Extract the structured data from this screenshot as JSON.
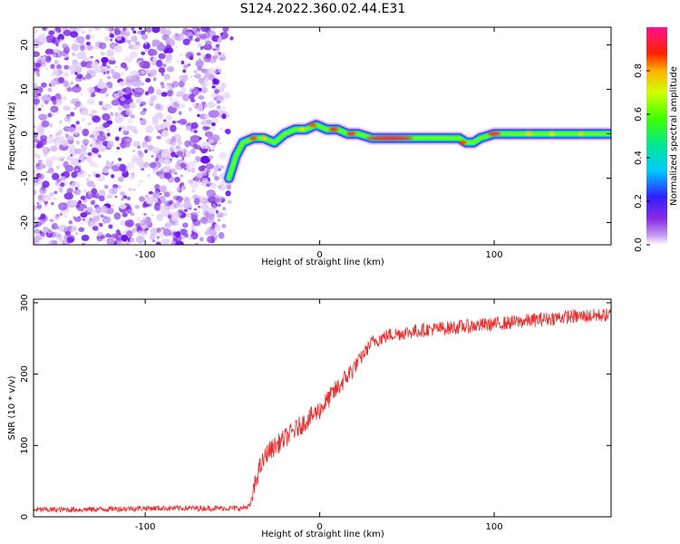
{
  "title": "S124.2022.360.02.44.E31",
  "colors": {
    "snr_line": "#e83030",
    "background": "#ffffff",
    "noise_cloud": "#8a2be2"
  },
  "chart_data": [
    {
      "type": "heatmap",
      "xlabel": "Height of straight line (km)",
      "ylabel": "Frequency (Hz)",
      "xlim": [
        -164,
        167
      ],
      "ylim": [
        -25,
        24
      ],
      "xticks": [
        -100,
        0,
        100
      ],
      "yticks": [
        -20,
        -10,
        0,
        10,
        20
      ],
      "colorbar": {
        "label": "Normalized spectral amplitude",
        "range": [
          0,
          1
        ],
        "ticks": [
          "0.0",
          "0.2",
          "0.4",
          "0.6",
          "0.8"
        ],
        "colormap": "rainbow (white-violet-blue-cyan-green-yellow-red-magenta)"
      },
      "noise_region_x": [
        -164,
        -50
      ],
      "ridge": {
        "x": [
          -52,
          -48,
          -44,
          -38,
          -32,
          -26,
          -20,
          -14,
          -8,
          -2,
          4,
          10,
          16,
          22,
          30,
          45,
          60,
          75,
          80,
          84,
          88,
          92,
          100,
          120,
          140,
          160,
          167
        ],
        "freq": [
          -10,
          -5,
          -2,
          -1,
          -1,
          -2,
          0,
          1,
          1,
          2,
          1,
          1,
          0,
          0,
          -1,
          -1,
          -1,
          -1,
          -1,
          -2,
          -2,
          -1,
          0,
          0,
          0,
          0,
          0
        ]
      }
    },
    {
      "type": "line",
      "xlabel": "Height of straight line (km)",
      "ylabel": "SNR (10 * v/v)",
      "xlim": [
        -164,
        167
      ],
      "ylim": [
        0,
        305
      ],
      "xticks": [
        -100,
        0,
        100
      ],
      "yticks": [
        0,
        100,
        200,
        300
      ],
      "series": [
        {
          "x": [
            -164,
            -140,
            -120,
            -100,
            -80,
            -60,
            -45,
            -40,
            -35,
            -30,
            -20,
            -10,
            0,
            10,
            20,
            30,
            40,
            60,
            80,
            100,
            120,
            140,
            167
          ],
          "y": [
            10,
            10,
            11,
            12,
            12,
            12,
            12,
            15,
            65,
            90,
            110,
            130,
            150,
            180,
            210,
            245,
            255,
            262,
            266,
            270,
            275,
            280,
            283
          ]
        }
      ]
    }
  ]
}
